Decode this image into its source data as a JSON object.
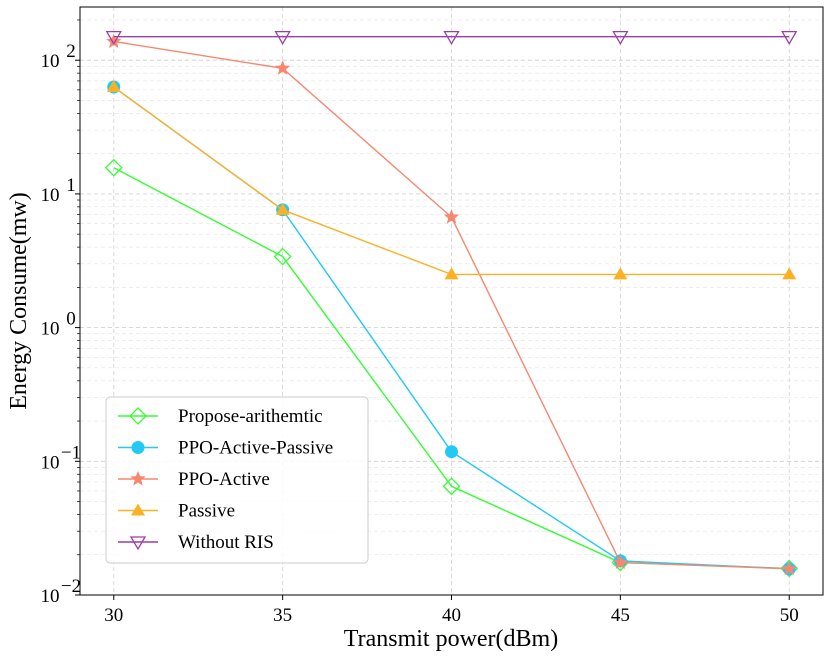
{
  "chart_data": {
    "type": "line",
    "title": "",
    "xlabel": "Transmit power(dBm)",
    "ylabel": "Energy Consume(mw)",
    "yscale": "log",
    "x": [
      30,
      35,
      40,
      45,
      50
    ],
    "xlim": [
      29,
      51
    ],
    "ylim": [
      0.01,
      250
    ],
    "x_ticks": [
      30,
      35,
      40,
      45,
      50
    ],
    "y_ticks": [
      {
        "value": 0.01,
        "base": "10",
        "exp": "−2"
      },
      {
        "value": 0.1,
        "base": "10",
        "exp": "−1"
      },
      {
        "value": 1,
        "base": "10",
        "exp": "0"
      },
      {
        "value": 10,
        "base": "10",
        "exp": "1"
      },
      {
        "value": 100,
        "base": "10",
        "exp": "2"
      }
    ],
    "grid": true,
    "legend_position": "lower-left",
    "series": [
      {
        "name": "Propose-arithemtic",
        "color": "#33ff33",
        "marker": "diamond-open",
        "values": [
          15.7,
          3.4,
          0.065,
          0.0175,
          0.0158
        ]
      },
      {
        "name": "PPO-Active-Passive",
        "color": "#23c8f5",
        "marker": "circle-filled",
        "values": [
          63,
          7.6,
          0.118,
          0.018,
          0.0157
        ]
      },
      {
        "name": "PPO-Active",
        "color": "#f88770",
        "marker": "star-filled",
        "values": [
          138,
          87,
          6.7,
          0.0175,
          0.0157
        ]
      },
      {
        "name": "Passive",
        "color": "#fbb125",
        "marker": "triangle-up-filled",
        "values": [
          63,
          7.6,
          2.5,
          2.5,
          2.5
        ]
      },
      {
        "name": "Without RIS",
        "color": "#9b3fa8",
        "marker": "triangle-down-open",
        "values": [
          150,
          150,
          150,
          150,
          150
        ]
      }
    ]
  }
}
